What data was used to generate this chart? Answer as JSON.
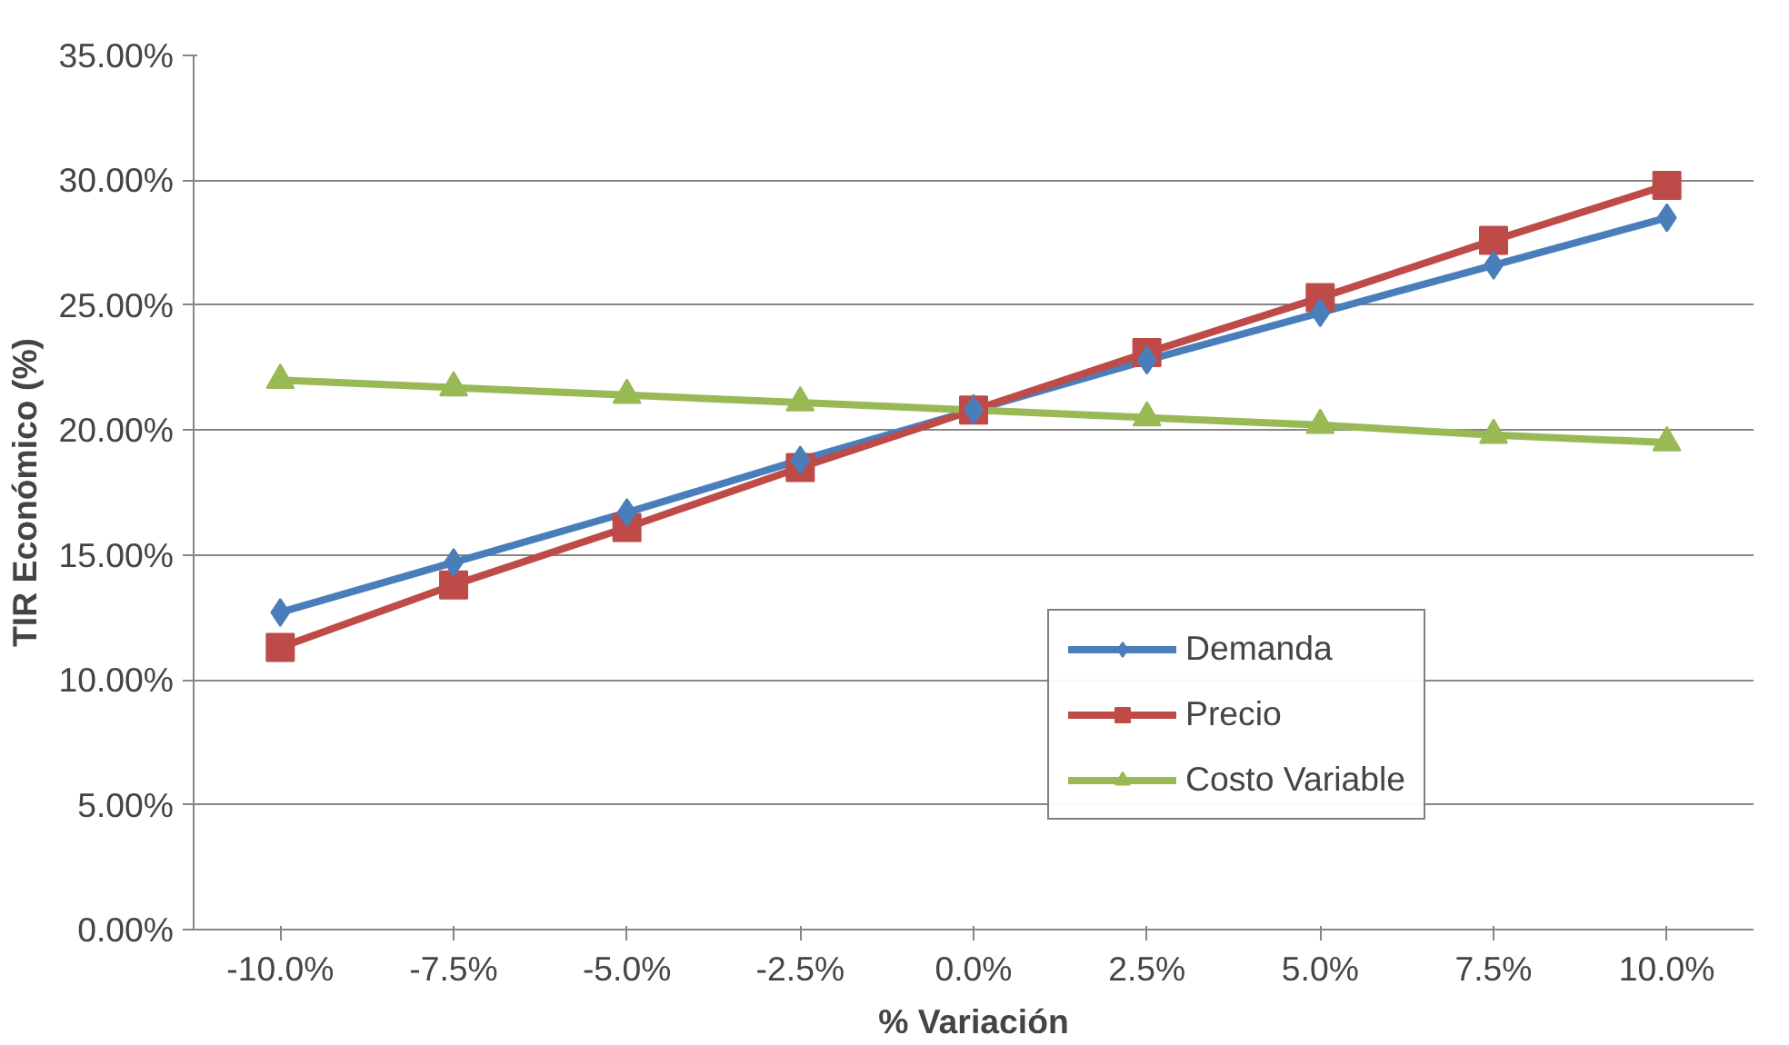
{
  "chart_data": {
    "type": "line",
    "xlabel": "% Variación",
    "ylabel": "TIR Económico (%)",
    "categories": [
      "-10.0%",
      "-7.5%",
      "-5.0%",
      "-2.5%",
      "0.0%",
      "2.5%",
      "5.0%",
      "7.5%",
      "10.0%"
    ],
    "ylim": [
      0,
      35
    ],
    "yticks": [
      {
        "value": 0,
        "label": "0.00%"
      },
      {
        "value": 5,
        "label": "5.00%"
      },
      {
        "value": 10,
        "label": "10.00%"
      },
      {
        "value": 15,
        "label": "15.00%"
      },
      {
        "value": 20,
        "label": "20.00%"
      },
      {
        "value": 25,
        "label": "25.00%"
      },
      {
        "value": 30,
        "label": "30.00%"
      },
      {
        "value": 35,
        "label": "35.00%"
      }
    ],
    "grid": "y",
    "legend": "right",
    "line_style": "solid",
    "series": [
      {
        "name": "Demanda",
        "color": "#4a7ebb",
        "marker": "diamond",
        "values": [
          12.7,
          14.7,
          16.7,
          18.8,
          20.8,
          22.8,
          24.7,
          26.6,
          28.5
        ]
      },
      {
        "name": "Precio",
        "color": "#be4b48",
        "marker": "square",
        "values": [
          11.3,
          13.8,
          16.1,
          18.5,
          20.8,
          23.1,
          25.3,
          27.6,
          29.8
        ]
      },
      {
        "name": "Costo Variable",
        "color": "#98b954",
        "marker": "triangle",
        "values": [
          22.0,
          21.7,
          21.4,
          21.1,
          20.8,
          20.5,
          20.2,
          19.8,
          19.5
        ]
      }
    ]
  }
}
